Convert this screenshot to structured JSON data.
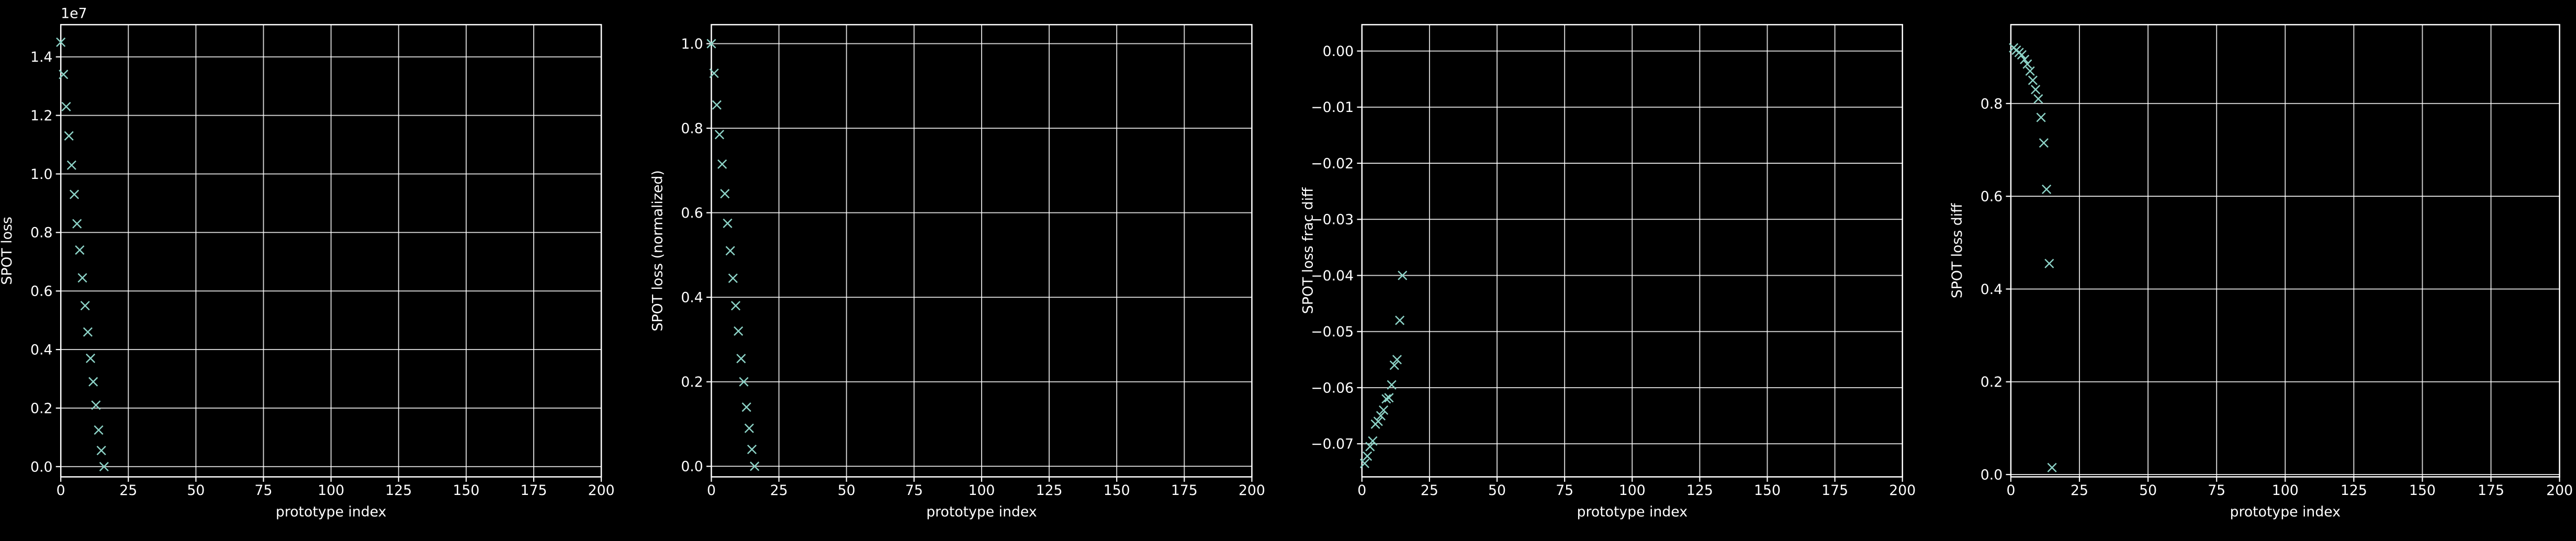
{
  "chart_data": [
    {
      "type": "scatter",
      "marker": "x",
      "color": "#8dd3c7",
      "grid": true,
      "x_label": "prototype index",
      "y_label": "SPOT loss",
      "y_scale_label": "1e7",
      "x": [
        0,
        1,
        2,
        3,
        4,
        5,
        6,
        7,
        8,
        9,
        10,
        11,
        12,
        13,
        14,
        15,
        16
      ],
      "values": [
        1.45,
        1.34,
        1.23,
        1.13,
        1.03,
        0.93,
        0.83,
        0.74,
        0.645,
        0.55,
        0.46,
        0.37,
        0.29,
        0.21,
        0.125,
        0.055,
        0.0
      ],
      "xlim": [
        0,
        200
      ],
      "xticks": [
        0,
        25,
        50,
        75,
        100,
        125,
        150,
        175,
        200
      ],
      "ylim": [
        -0.035,
        1.51
      ],
      "yticks": [
        {
          "value": 0,
          "label": "0.0"
        },
        0.2,
        0.4,
        0.6,
        0.8,
        {
          "value": 1,
          "label": "1.0"
        },
        1.2,
        1.4
      ]
    },
    {
      "type": "scatter",
      "marker": "x",
      "color": "#8dd3c7",
      "grid": true,
      "x_label": "prototype index",
      "y_label": "SPOT loss (normalized)",
      "x": [
        0,
        1,
        2,
        3,
        4,
        5,
        6,
        7,
        8,
        9,
        10,
        11,
        12,
        13,
        14,
        15,
        16
      ],
      "values": [
        1.0,
        0.93,
        0.855,
        0.785,
        0.715,
        0.645,
        0.575,
        0.51,
        0.445,
        0.38,
        0.32,
        0.255,
        0.2,
        0.14,
        0.09,
        0.04,
        0.0
      ],
      "xlim": [
        0,
        200
      ],
      "xticks": [
        0,
        25,
        50,
        75,
        100,
        125,
        150,
        175,
        200
      ],
      "ylim": [
        -0.025,
        1.045
      ],
      "yticks": [
        {
          "value": 0,
          "label": "0.0"
        },
        0.2,
        0.4,
        0.6,
        0.8,
        {
          "value": 1,
          "label": "1.0"
        }
      ]
    },
    {
      "type": "scatter",
      "marker": "x",
      "color": "#8dd3c7",
      "grid": true,
      "x_label": "prototype index",
      "y_label": "SPOT loss frac diff",
      "x": [
        1,
        2,
        3,
        4,
        5,
        6,
        7,
        8,
        9,
        10,
        11,
        12,
        13,
        14,
        15
      ],
      "values": [
        -0.0735,
        -0.0722,
        -0.0705,
        -0.0695,
        -0.0665,
        -0.066,
        -0.065,
        -0.064,
        -0.062,
        -0.0618,
        -0.0595,
        -0.056,
        -0.055,
        -0.048,
        -0.04
      ],
      "xlim": [
        0,
        200
      ],
      "xticks": [
        0,
        25,
        50,
        75,
        100,
        125,
        150,
        175,
        200
      ],
      "ylim": [
        -0.0759,
        0.0047
      ],
      "yticks": [
        {
          "value": 0,
          "label": "0.00"
        },
        {
          "value": -0.01,
          "label": "−0.01"
        },
        {
          "value": -0.02,
          "label": "−0.02"
        },
        {
          "value": -0.03,
          "label": "−0.03"
        },
        {
          "value": -0.04,
          "label": "−0.04"
        },
        {
          "value": -0.05,
          "label": "−0.05"
        },
        {
          "value": -0.06,
          "label": "−0.06"
        },
        {
          "value": -0.07,
          "label": "−0.07"
        }
      ]
    },
    {
      "type": "scatter",
      "marker": "x",
      "color": "#8dd3c7",
      "grid": true,
      "x_label": "prototype index",
      "y_label": "SPOT loss diff",
      "x": [
        1,
        2,
        3,
        4,
        5,
        6,
        7,
        8,
        9,
        10,
        11,
        12,
        13,
        14,
        15
      ],
      "values": [
        0.92,
        0.915,
        0.91,
        0.905,
        0.895,
        0.885,
        0.87,
        0.85,
        0.83,
        0.81,
        0.77,
        0.715,
        0.615,
        0.455,
        0.015
      ],
      "xlim": [
        0,
        200
      ],
      "xticks": [
        0,
        25,
        50,
        75,
        100,
        125,
        150,
        175,
        200
      ],
      "ylim": [
        -0.005,
        0.97
      ],
      "yticks": [
        {
          "value": 0,
          "label": "0.0"
        },
        0.2,
        0.4,
        0.6,
        0.8
      ]
    }
  ]
}
